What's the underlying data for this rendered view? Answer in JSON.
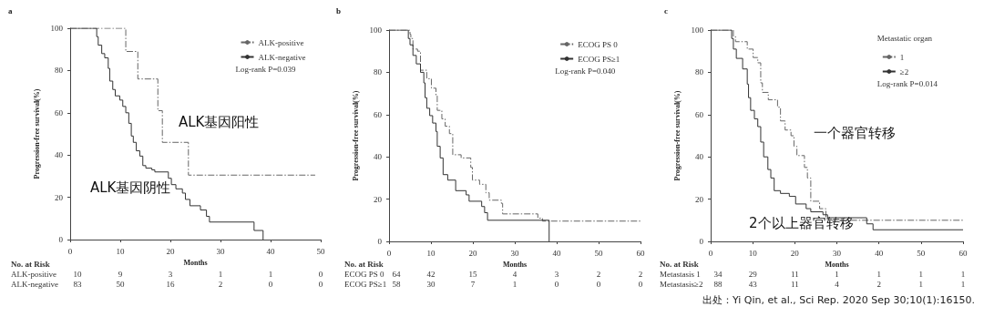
{
  "chart_data": [
    {
      "type": "step",
      "title": "a",
      "xlabel": "Months",
      "ylabel": "Progression-free survival(%)",
      "xlim": [
        0,
        50
      ],
      "xticks": [
        0,
        10,
        20,
        30,
        40,
        50
      ],
      "ylim": [
        0,
        100
      ],
      "yticks": [
        0,
        20,
        40,
        60,
        80,
        100
      ],
      "legend": "top right",
      "grid": false,
      "series": [
        {
          "name": "ALK-positive",
          "color": "#666666",
          "line_style": "dashed",
          "x": [
            0,
            11.1,
            13.5,
            17.5,
            18.4,
            23.6,
            48.9
          ],
          "values": [
            100,
            89,
            76,
            61,
            46,
            30.5,
            30.5
          ]
        },
        {
          "name": "ALK-negative",
          "color": "#333333",
          "line_style": "solid",
          "x": [
            0,
            5.3,
            5.6,
            6.3,
            6.9,
            7.6,
            7.9,
            8.5,
            9,
            9.9,
            10.5,
            11.1,
            11.7,
            12.2,
            12.6,
            13.2,
            13.9,
            14.5,
            15.1,
            16.3,
            16.9,
            19.6,
            20.2,
            21.1,
            22.4,
            23,
            23.9,
            26,
            27.2,
            27.8,
            36.7,
            38.5
          ],
          "values": [
            100,
            96,
            92,
            88,
            86,
            81,
            75,
            71,
            68,
            66,
            63,
            60,
            55,
            49,
            46,
            42,
            39.5,
            35,
            33.8,
            33,
            32,
            29,
            26,
            24,
            22,
            19,
            16,
            14,
            11,
            8.3,
            4.3,
            0
          ]
        }
      ],
      "annotations": [
        "Log-rank P=0.039",
        "No. at Risk",
        "ALK-positive",
        "10 9 3 1 1 0",
        "ALK-negative",
        "83 50 16 2 0 0",
        "ALK基因阳性",
        "ALK基因阴性"
      ]
    },
    {
      "type": "step",
      "title": "b",
      "xlabel": "Months",
      "ylabel": "Progression-free survival(%)",
      "xlim": [
        0,
        60
      ],
      "xticks": [
        0,
        10,
        20,
        30,
        40,
        50,
        60
      ],
      "ylim": [
        0,
        100
      ],
      "yticks": [
        0,
        20,
        40,
        60,
        80,
        100
      ],
      "legend": "top right",
      "grid": false,
      "series": [
        {
          "name": "ECOG PS 0",
          "color": "#666666",
          "line_style": "dashed",
          "x": [
            0,
            5,
            5.2,
            5.7,
            6.8,
            7.5,
            9,
            10.1,
            11.2,
            11.5,
            12.6,
            13.4,
            14.4,
            15.2,
            17.2,
            19.5,
            19.9,
            21.6,
            23.1,
            23.9,
            26.8,
            27.1,
            35.5,
            36.6,
            60
          ],
          "values": [
            100,
            98,
            96,
            91,
            90,
            81,
            77,
            72.5,
            69,
            62,
            58,
            54.5,
            51,
            41,
            39.5,
            35,
            29,
            27,
            23,
            19.5,
            18,
            13,
            11,
            9.6,
            9.6
          ]
        },
        {
          "name": "ECOG PS≥1",
          "color": "#333333",
          "line_style": "solid",
          "x": [
            0,
            4.6,
            5,
            5.7,
            6.5,
            7.5,
            8.3,
            8.6,
            9,
            9.7,
            10.4,
            11.2,
            11.5,
            12.2,
            12.9,
            14,
            15.9,
            18.4,
            19.1,
            22.1,
            22.8,
            23.5,
            38.2
          ],
          "values": [
            100,
            96,
            93,
            88,
            84,
            80,
            75,
            68,
            63,
            59.5,
            56,
            52,
            45,
            39.5,
            31.6,
            29,
            24,
            22,
            19,
            16.5,
            13.6,
            10,
            0
          ]
        }
      ],
      "annotations": [
        "Log-rank P=0.040",
        "No. at Risk",
        "ECOG PS 0",
        "64 42 15 4 3 2 2",
        "ECOG PS≥1",
        "58 30 7 1 0 0 0"
      ]
    },
    {
      "type": "step",
      "title": "c",
      "xlabel": "Months",
      "ylabel": "Progression-free survival(%)",
      "legend_title": "Metastatic organ",
      "xlim": [
        0,
        60
      ],
      "xticks": [
        0,
        10,
        20,
        30,
        40,
        50,
        60
      ],
      "ylim": [
        0,
        100
      ],
      "yticks": [
        0,
        20,
        40,
        60,
        80,
        100
      ],
      "legend": "top right",
      "grid": false,
      "series": [
        {
          "name": "1",
          "color": "#666666",
          "line_style": "dashed",
          "x": [
            0,
            5.4,
            5.9,
            8.7,
            10.1,
            11.2,
            11.9,
            12.3,
            13.7,
            15.9,
            16.6,
            17.7,
            19.1,
            19.8,
            20.5,
            22.3,
            23,
            23.8,
            25.9,
            27.4,
            28.1,
            60
          ],
          "values": [
            100,
            97,
            94.5,
            91,
            87,
            84.5,
            75,
            70.5,
            67,
            63.5,
            57,
            52.7,
            50,
            45,
            40.6,
            35,
            30,
            19,
            15.5,
            11,
            10,
            10
          ]
        },
        {
          "name": "≥2",
          "color": "#333333",
          "line_style": "solid",
          "x": [
            0,
            5,
            5.4,
            6.1,
            7.6,
            8.7,
            9,
            9.5,
            10.4,
            11.2,
            11.9,
            12.6,
            13.6,
            14.3,
            15.1,
            16.6,
            18.7,
            20.2,
            22.7,
            23.8,
            26.7,
            27.8,
            37.1,
            38.6,
            60
          ],
          "values": [
            100,
            96,
            91,
            86.6,
            81.6,
            74.4,
            68,
            62,
            58,
            54.3,
            47,
            40,
            34,
            30,
            24,
            22.7,
            21.3,
            17.7,
            15.5,
            14,
            12.6,
            11.2,
            8.3,
            5.5,
            5.5
          ]
        }
      ],
      "annotations": [
        "Log-rank P=0.014",
        "No. at Risk",
        "Metastasis 1",
        "34 29 11 1 1 1 1",
        "Metastasis≥2",
        "88 43 11 4 2 1 1",
        "一个器官转移",
        "2个以上器官转移",
        "出处：Yi Qin, et al., Sci Rep. 2020 Sep 30;10(1):16150."
      ]
    }
  ]
}
